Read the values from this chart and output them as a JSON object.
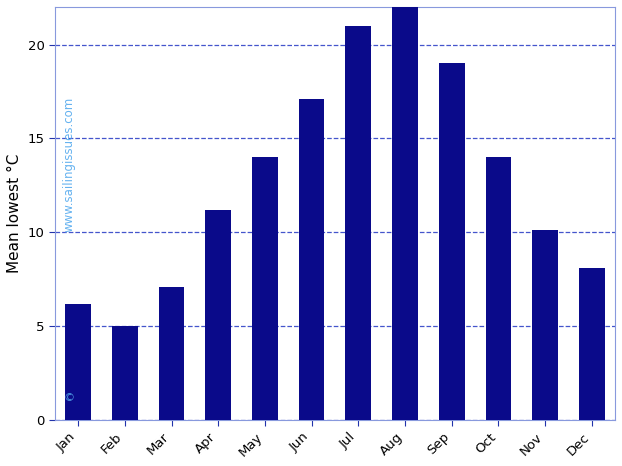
{
  "months": [
    "Jan",
    "Feb",
    "Mar",
    "Apr",
    "May",
    "Jun",
    "Jul",
    "Aug",
    "Sep",
    "Oct",
    "Nov",
    "Dec"
  ],
  "values": [
    6.2,
    5.0,
    7.1,
    11.2,
    14.0,
    17.1,
    21.0,
    23.5,
    19.0,
    14.0,
    10.1,
    8.1
  ],
  "bar_color": "#0a0a8a",
  "ylabel": "Mean lowest °C",
  "yticks": [
    0,
    5,
    10,
    15,
    20
  ],
  "ylim": [
    0,
    22
  ],
  "grid_color": "#4455cc",
  "watermark_text": "www.sailingissues.com",
  "watermark_color": "#55aaee",
  "background_color": "#ffffff",
  "border_color": "#8899dd",
  "spine_color": "#2233aa",
  "tick_label_fontsize": 9.5,
  "ylabel_fontsize": 11
}
